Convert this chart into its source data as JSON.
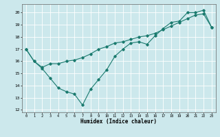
{
  "title": "",
  "xlabel": "Humidex (Indice chaleur)",
  "ylabel": "",
  "xlim": [
    -0.5,
    23.5
  ],
  "ylim": [
    11.8,
    20.7
  ],
  "yticks": [
    12,
    13,
    14,
    15,
    16,
    17,
    18,
    19,
    20
  ],
  "xticks": [
    0,
    1,
    2,
    3,
    4,
    5,
    6,
    7,
    8,
    9,
    10,
    11,
    12,
    13,
    14,
    15,
    16,
    17,
    18,
    19,
    20,
    21,
    22,
    23
  ],
  "bg_color": "#cce8ec",
  "grid_color": "#ffffff",
  "line_color": "#1a7a6e",
  "line1_x": [
    0,
    1,
    2,
    3,
    4,
    5,
    6,
    7,
    8,
    9,
    10,
    11,
    12,
    13,
    14,
    15,
    16,
    17,
    18,
    19,
    20,
    21,
    22,
    23
  ],
  "line1_y": [
    17.0,
    16.0,
    15.5,
    15.8,
    15.8,
    16.0,
    16.1,
    16.3,
    16.6,
    17.0,
    17.2,
    17.5,
    17.6,
    17.8,
    18.0,
    18.1,
    18.3,
    18.6,
    18.9,
    19.2,
    19.5,
    19.8,
    19.9,
    18.8
  ],
  "line2_x": [
    0,
    1,
    2,
    3,
    4,
    5,
    6,
    7,
    8,
    9,
    10,
    11,
    12,
    13,
    14,
    15,
    16,
    17,
    18,
    19,
    20,
    21,
    22,
    23
  ],
  "line2_y": [
    17.0,
    16.0,
    15.4,
    14.6,
    13.8,
    13.5,
    13.3,
    12.4,
    13.7,
    14.5,
    15.3,
    16.4,
    17.0,
    17.5,
    17.6,
    17.4,
    18.1,
    18.7,
    19.2,
    19.3,
    20.0,
    20.0,
    20.2,
    18.8
  ]
}
